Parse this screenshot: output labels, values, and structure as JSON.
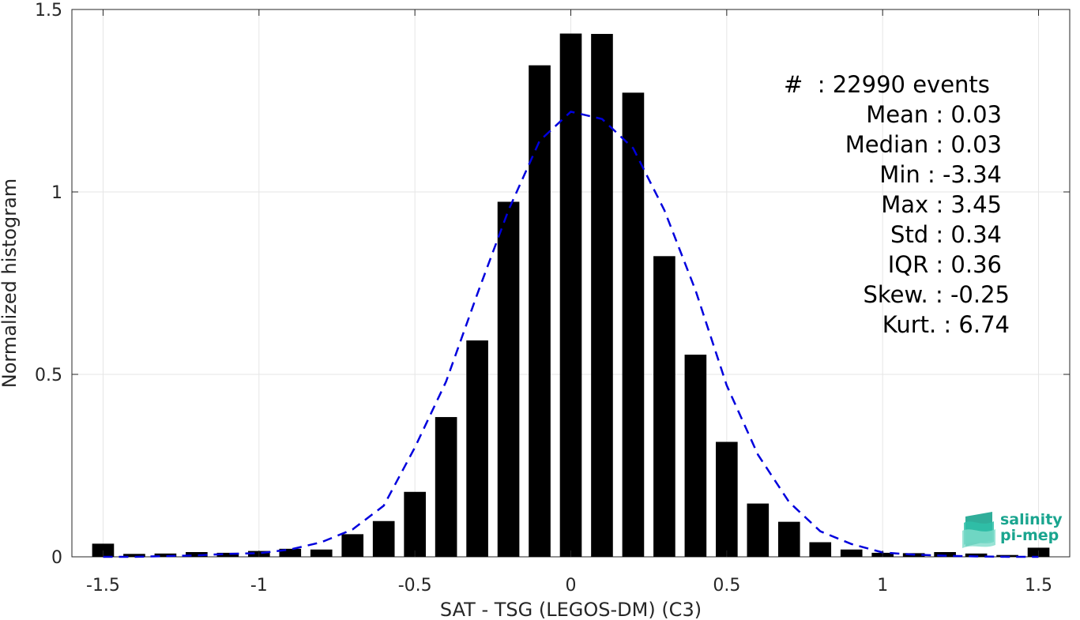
{
  "chart_data": {
    "type": "bar",
    "xlabel": "SAT - TSG (LEGOS-DM) (C3)",
    "ylabel": "Normalized histogram",
    "xlim": [
      -1.6,
      1.6
    ],
    "ylim": [
      0,
      1.5
    ],
    "xticks": [
      -1.5,
      -1,
      -0.5,
      0,
      0.5,
      1,
      1.5
    ],
    "yticks": [
      0,
      0.5,
      1,
      1.5
    ],
    "xtick_labels": [
      "-1.5",
      "-1",
      "-0.5",
      "0",
      "0.5",
      "1",
      "1.5"
    ],
    "ytick_labels": [
      "0",
      "0.5",
      "1",
      "1.5"
    ],
    "grid": true,
    "bar_color": "#000000",
    "bin_width": 0.1,
    "x": [
      -1.5,
      -1.4,
      -1.3,
      -1.2,
      -1.1,
      -1.0,
      -0.9,
      -0.8,
      -0.7,
      -0.6,
      -0.5,
      -0.4,
      -0.3,
      -0.2,
      -0.1,
      0.0,
      0.1,
      0.2,
      0.3,
      0.4,
      0.5,
      0.6,
      0.7,
      0.8,
      0.9,
      1.0,
      1.1,
      1.2,
      1.3,
      1.4,
      1.5
    ],
    "values": [
      0.036,
      0.008,
      0.009,
      0.013,
      0.011,
      0.016,
      0.022,
      0.02,
      0.062,
      0.098,
      0.178,
      0.383,
      0.593,
      0.973,
      1.347,
      1.434,
      1.433,
      1.272,
      0.824,
      0.554,
      0.315,
      0.146,
      0.096,
      0.04,
      0.02,
      0.011,
      0.01,
      0.013,
      0.009,
      0.005,
      0.025
    ],
    "fit_curve": {
      "style": "dashed",
      "color": "#0000dd",
      "x": [
        -1.5,
        -1.4,
        -1.3,
        -1.2,
        -1.1,
        -1.0,
        -0.9,
        -0.8,
        -0.7,
        -0.6,
        -0.5,
        -0.4,
        -0.3,
        -0.2,
        -0.1,
        0.0,
        0.1,
        0.2,
        0.3,
        0.4,
        0.5,
        0.6,
        0.7,
        0.8,
        0.9,
        1.0,
        1.1,
        1.2,
        1.3,
        1.4,
        1.5
      ],
      "y": [
        0.0,
        0.0,
        0.002,
        0.004,
        0.008,
        0.01,
        0.02,
        0.04,
        0.075,
        0.14,
        0.3,
        0.48,
        0.72,
        0.95,
        1.14,
        1.22,
        1.2,
        1.12,
        0.95,
        0.73,
        0.47,
        0.28,
        0.15,
        0.07,
        0.035,
        0.012,
        0.006,
        0.003,
        0.001,
        0.0,
        0.0
      ]
    },
    "stats": [
      "#  : 22990 events",
      "Mean : 0.03",
      "Median : 0.03",
      "Min : -3.34",
      "Max : 3.45",
      "Std : 0.34",
      "IQR : 0.36",
      "Skew. : -0.25",
      "Kurt. : 6.74"
    ]
  },
  "logo": {
    "line1": "salinity",
    "line2": "pi-mep",
    "color": "#1aa58f"
  }
}
